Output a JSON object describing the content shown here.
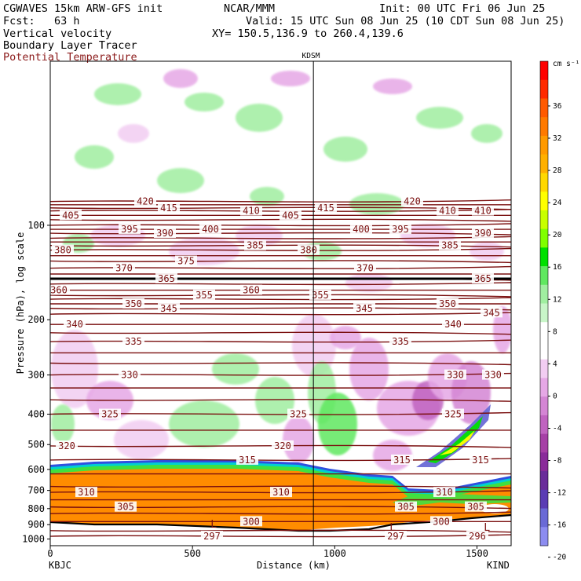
{
  "header": {
    "model": "CGWAVES 15km ARW-GFS init",
    "org": "NCAR/MMM",
    "init": "Init: 00 UTC Fri 06 Jun 25",
    "fcst": "Fcst:   63 h",
    "valid": "Valid: 15 UTC Sun 08 Jun 25 (10 CDT Sun 08 Jun 25)",
    "field1": "Vertical velocity",
    "xy": "XY= 150.5,136.9 to 260.4,139.6",
    "field2": "Boundary Layer Tracer",
    "field3": "Potential Temperature"
  },
  "colors": {
    "theta": "#7a0f0f",
    "tracer_fill": "#ff8c00",
    "sounding_line": "#000000"
  },
  "chart_data": {
    "type": "heatmap",
    "title": "KDSM",
    "xlabel": "Distance (km)",
    "ylabel": "Pressure (hPa), log scale",
    "xlim": [
      0,
      1620
    ],
    "ylim": [
      1000,
      30
    ],
    "xticks": [
      "0",
      "500",
      "1000",
      "1500"
    ],
    "yticks": [
      "100",
      "200",
      "300",
      "400",
      "500",
      "600",
      "700",
      "800",
      "900",
      "1000"
    ],
    "endpoints": {
      "left": "KBJC",
      "right": "KIND"
    },
    "station_line_km": 925,
    "colorbar": {
      "unit": "cm s⁻¹",
      "tick_labels": [
        "36",
        "32",
        "28",
        "24",
        "20",
        "16",
        "12",
        "8",
        "4",
        "0",
        "-4",
        "-8",
        "-12",
        "-16",
        "-20"
      ],
      "colors": [
        "#ff0000",
        "#ff2a00",
        "#ff5a00",
        "#ff7a00",
        "#ff9a00",
        "#ffb000",
        "#ffd800",
        "#ffff00",
        "#c8ff00",
        "#80ff00",
        "#00e000",
        "#60e860",
        "#a0eea0",
        "#c8f5c8",
        "#ffffff",
        "#ffffff",
        "#f2cdf2",
        "#e6a8e6",
        "#d486d4",
        "#c064c0",
        "#a640a6",
        "#8a2c9a",
        "#6a2c9a",
        "#5a3cb4",
        "#6a6ad6",
        "#8c8cf0"
      ]
    },
    "theta_levels": [
      {
        "label": "420",
        "x": 185,
        "p": 84
      },
      {
        "label": "415",
        "x": 215,
        "p": 88
      },
      {
        "label": "410",
        "x": 320,
        "p": 90
      },
      {
        "label": "405",
        "x": 90,
        "p": 93
      },
      {
        "label": "395",
        "x": 165,
        "p": 103
      },
      {
        "label": "390",
        "x": 210,
        "p": 106
      },
      {
        "label": "400",
        "x": 268,
        "p": 103
      },
      {
        "label": "385",
        "x": 325,
        "p": 116
      },
      {
        "label": "380",
        "x": 80,
        "p": 120
      },
      {
        "label": "375",
        "x": 237,
        "p": 130
      },
      {
        "label": "370",
        "x": 158,
        "p": 137
      },
      {
        "label": "365",
        "x": 212,
        "p": 148
      },
      {
        "label": "360",
        "x": 75,
        "p": 161
      },
      {
        "label": "355",
        "x": 260,
        "p": 167
      },
      {
        "label": "350",
        "x": 170,
        "p": 178
      },
      {
        "label": "345",
        "x": 215,
        "p": 184
      },
      {
        "label": "340",
        "x": 95,
        "p": 207
      },
      {
        "label": "335",
        "x": 170,
        "p": 235
      },
      {
        "label": "330",
        "x": 165,
        "p": 300
      },
      {
        "label": "325",
        "x": 140,
        "p": 400
      },
      {
        "label": "320",
        "x": 85,
        "p": 505
      },
      {
        "label": "315",
        "x": 315,
        "p": 560
      },
      {
        "label": "310",
        "x": 110,
        "p": 710
      },
      {
        "label": "305",
        "x": 160,
        "p": 790
      },
      {
        "label": "300",
        "x": 320,
        "p": 880
      },
      {
        "label": "297",
        "x": 270,
        "p": 980
      },
      {
        "label": "360",
        "x": 320,
        "p": 161
      },
      {
        "label": "415",
        "x": 415,
        "p": 88
      },
      {
        "label": "405",
        "x": 370,
        "p": 93
      },
      {
        "label": "380",
        "x": 393,
        "p": 120
      },
      {
        "label": "355",
        "x": 408,
        "p": 167
      },
      {
        "label": "325",
        "x": 380,
        "p": 400
      },
      {
        "label": "320",
        "x": 360,
        "p": 505
      },
      {
        "label": "310",
        "x": 358,
        "p": 710
      },
      {
        "label": "420",
        "x": 525,
        "p": 84
      },
      {
        "label": "410",
        "x": 570,
        "p": 90
      },
      {
        "label": "410",
        "x": 615,
        "p": 90
      },
      {
        "label": "400",
        "x": 460,
        "p": 103
      },
      {
        "label": "395",
        "x": 510,
        "p": 103
      },
      {
        "label": "390",
        "x": 615,
        "p": 106
      },
      {
        "label": "385",
        "x": 573,
        "p": 116
      },
      {
        "label": "370",
        "x": 465,
        "p": 137
      },
      {
        "label": "365",
        "x": 615,
        "p": 148
      },
      {
        "label": "350",
        "x": 570,
        "p": 178
      },
      {
        "label": "345",
        "x": 464,
        "p": 184
      },
      {
        "label": "345",
        "x": 626,
        "p": 190
      },
      {
        "label": "340",
        "x": 577,
        "p": 207
      },
      {
        "label": "335",
        "x": 510,
        "p": 235
      },
      {
        "label": "330",
        "x": 580,
        "p": 300
      },
      {
        "label": "330",
        "x": 628,
        "p": 300
      },
      {
        "label": "325",
        "x": 577,
        "p": 400
      },
      {
        "label": "315",
        "x": 512,
        "p": 560
      },
      {
        "label": "315",
        "x": 612,
        "p": 560
      },
      {
        "label": "310",
        "x": 566,
        "p": 710
      },
      {
        "label": "305",
        "x": 517,
        "p": 790
      },
      {
        "label": "305",
        "x": 606,
        "p": 790
      },
      {
        "label": "300",
        "x": 562,
        "p": 880
      },
      {
        "label": "297",
        "x": 504,
        "p": 980
      },
      {
        "label": "296",
        "x": 608,
        "p": 980
      }
    ],
    "surface_low_markers": [
      "L",
      "L",
      "L"
    ]
  }
}
